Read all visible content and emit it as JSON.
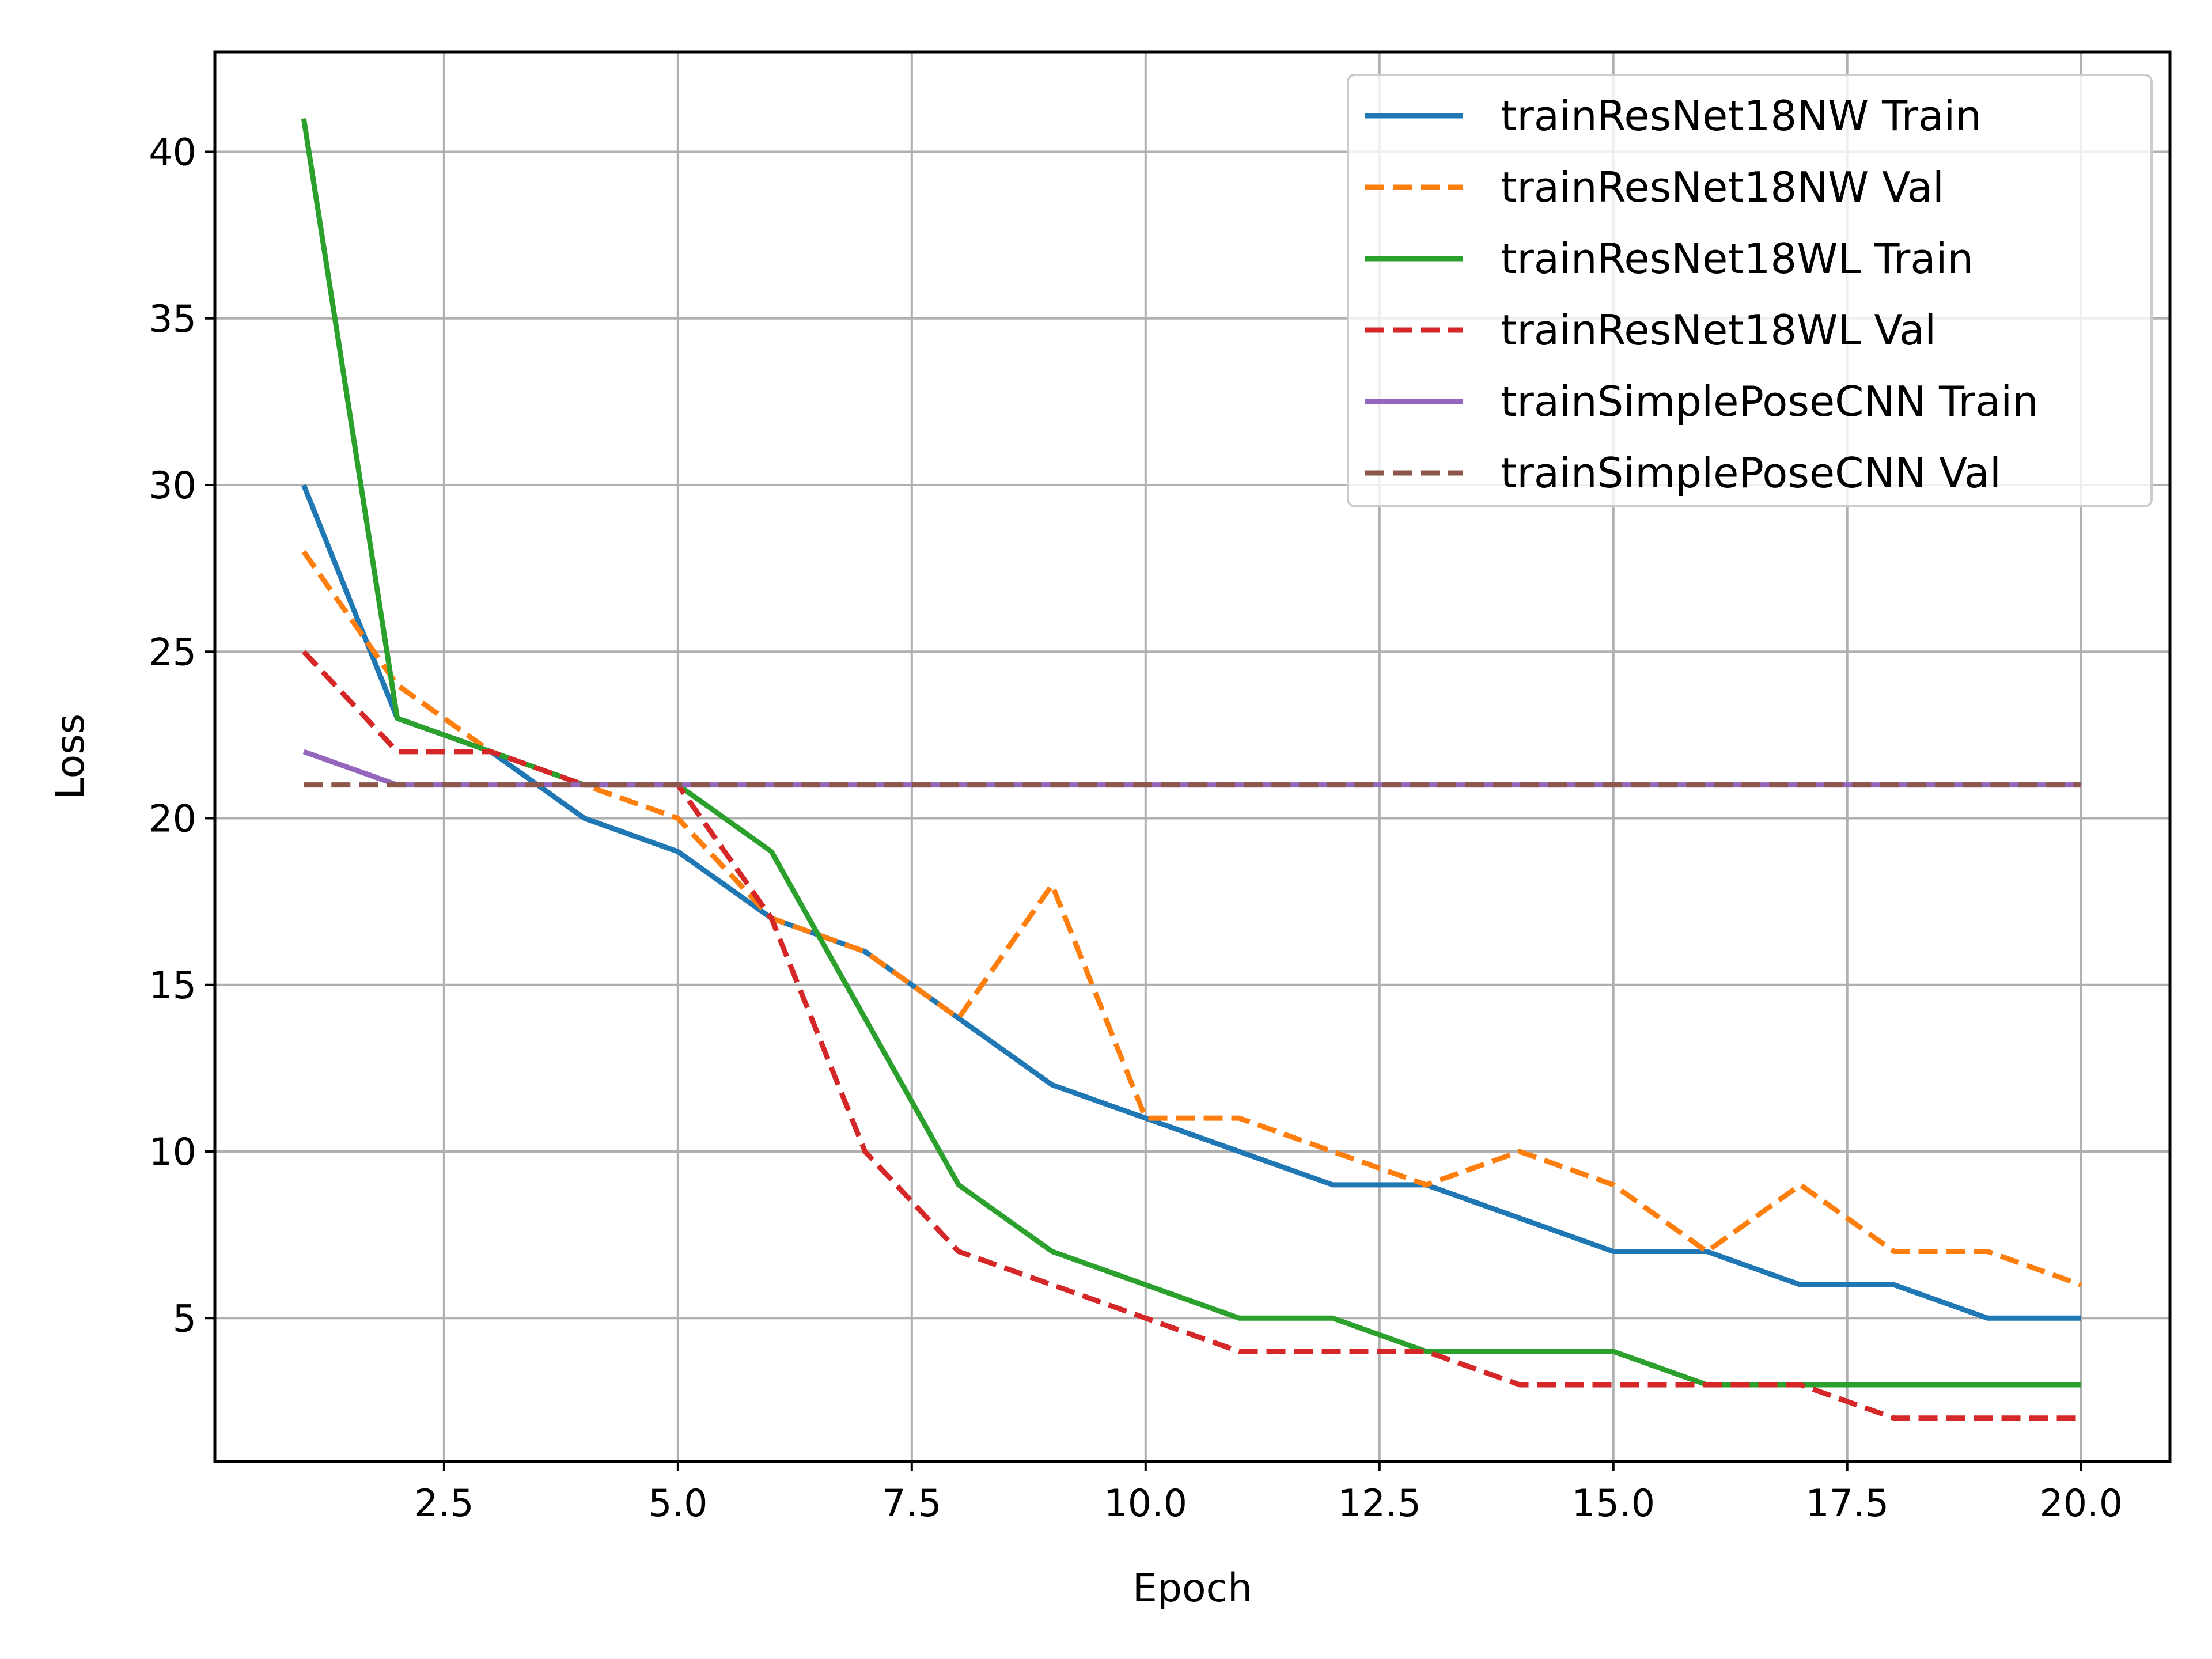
{
  "chart_data": {
    "type": "line",
    "title": "",
    "xlabel": "Epoch",
    "ylabel": "Loss",
    "xlim": [
      0.05,
      20.95
    ],
    "ylim": [
      0.7,
      43.0
    ],
    "xticks": [
      2.5,
      5.0,
      7.5,
      10.0,
      12.5,
      15.0,
      17.5,
      20.0
    ],
    "xtick_labels": [
      "2.5",
      "5.0",
      "7.5",
      "10.0",
      "12.5",
      "15.0",
      "17.5",
      "20.0"
    ],
    "yticks": [
      5,
      10,
      15,
      20,
      25,
      30,
      35,
      40
    ],
    "ytick_labels": [
      "5",
      "10",
      "15",
      "20",
      "25",
      "30",
      "35",
      "40"
    ],
    "grid": true,
    "legend_position": "top-right",
    "x": [
      1,
      2,
      3,
      4,
      5,
      6,
      7,
      8,
      9,
      10,
      11,
      12,
      13,
      14,
      15,
      16,
      17,
      18,
      19,
      20
    ],
    "series": [
      {
        "name": "trainResNet18NW Train",
        "color": "#1f77b4",
        "style": "solid",
        "values": [
          30,
          23,
          22,
          20,
          19,
          17,
          16,
          14,
          12,
          11,
          10,
          9,
          9,
          8,
          7,
          7,
          6,
          6,
          5,
          5
        ]
      },
      {
        "name": "trainResNet18NW Val",
        "color": "#ff7f0e",
        "style": "dashed",
        "values": [
          28,
          24,
          22,
          21,
          20,
          17,
          16,
          14,
          18,
          11,
          11,
          10,
          9,
          10,
          9,
          7,
          9,
          7,
          7,
          6
        ]
      },
      {
        "name": "trainResNet18WL Train",
        "color": "#2ca02c",
        "style": "solid",
        "values": [
          41,
          23,
          22,
          21,
          21,
          19,
          14,
          9,
          7,
          6,
          5,
          5,
          4,
          4,
          4,
          3,
          3,
          3,
          3,
          3
        ]
      },
      {
        "name": "trainResNet18WL Val",
        "color": "#d62728",
        "style": "dashed",
        "values": [
          25,
          22,
          22,
          21,
          21,
          17,
          10,
          7,
          6,
          5,
          4,
          4,
          4,
          3,
          3,
          3,
          3,
          2,
          2,
          2
        ]
      },
      {
        "name": "trainSimplePoseCNN Train",
        "color": "#9467bd",
        "style": "solid",
        "values": [
          22,
          21,
          21,
          21,
          21,
          21,
          21,
          21,
          21,
          21,
          21,
          21,
          21,
          21,
          21,
          21,
          21,
          21,
          21,
          21
        ]
      },
      {
        "name": "trainSimplePoseCNN Val",
        "color": "#8c564b",
        "style": "dashed",
        "values": [
          21,
          21,
          21,
          21,
          21,
          21,
          21,
          21,
          21,
          21,
          21,
          21,
          21,
          21,
          21,
          21,
          21,
          21,
          21,
          21
        ]
      }
    ]
  }
}
